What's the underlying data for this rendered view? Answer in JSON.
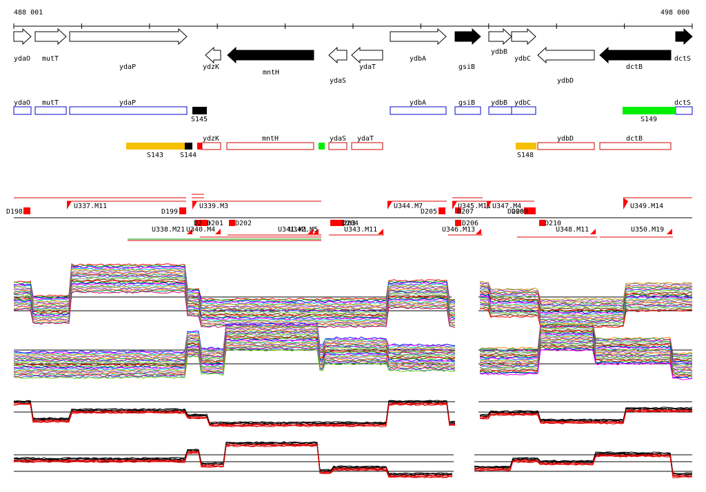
{
  "coordinates": {
    "start": "488 001",
    "end": "498 000"
  },
  "colors": {
    "forward_gene": "#ffffff",
    "reverse_gene": "#000000",
    "forward_box": "#0000cc",
    "reverse_box": "#cc0000",
    "marker_red": "#ff0000",
    "feature_yellow": "#f5c000",
    "feature_green": "#00ee00",
    "feature_black": "#000000",
    "track_line": "#000000",
    "profile_red": "#dd0000"
  },
  "gene_arrows": [
    {
      "name": "ydaO",
      "strand": "+"
    },
    {
      "name": "mutT",
      "strand": "+"
    },
    {
      "name": "ydaP",
      "strand": "+"
    },
    {
      "name": "ydzK",
      "strand": "-"
    },
    {
      "name": "mntH",
      "strand": "-",
      "filled": true
    },
    {
      "name": "ydaS",
      "strand": "-"
    },
    {
      "name": "ydaT",
      "strand": "-"
    },
    {
      "name": "ydbA",
      "strand": "+"
    },
    {
      "name": "gsiB",
      "strand": "+",
      "filled": true
    },
    {
      "name": "ydbB",
      "strand": "+"
    },
    {
      "name": "ydbC",
      "strand": "+"
    },
    {
      "name": "ydbD",
      "strand": "-"
    },
    {
      "name": "dctB",
      "strand": "-",
      "filled": true
    },
    {
      "name": "dctS",
      "strand": "+",
      "filled": true
    }
  ],
  "forward_boxes": [
    "ydaO",
    "mutT",
    "ydaP",
    "ydbA",
    "gsiB",
    "ydbB",
    "ydbC",
    "dctS"
  ],
  "forward_features": [
    {
      "label": "S145",
      "color": "black"
    },
    {
      "label": "S149",
      "color": "green"
    }
  ],
  "reverse_boxes": [
    "ydzK",
    "mntH",
    "ydaS",
    "ydaT",
    "ydbD",
    "dctB"
  ],
  "reverse_features": [
    {
      "label": "S143",
      "color": "yellow"
    },
    {
      "label": "S144",
      "color": "black"
    },
    {
      "label": "S148",
      "color": "yellow"
    }
  ],
  "upper_markers": [
    "D198",
    "U337.M11",
    "D199",
    "U339.M3",
    "U344.M7",
    "D205",
    "U345.M11",
    "U347.M4",
    "D208",
    "D209",
    "U349.M14"
  ],
  "lower_markers": [
    "U338.M21",
    "D200",
    "U340.M4",
    "D201",
    "D202",
    "U341.M1",
    "U342.M5",
    "D203",
    "D204",
    "U343.M11",
    "U346.M13",
    "D206",
    "D207",
    "D210",
    "U348.M11",
    "U350.M19"
  ]
}
